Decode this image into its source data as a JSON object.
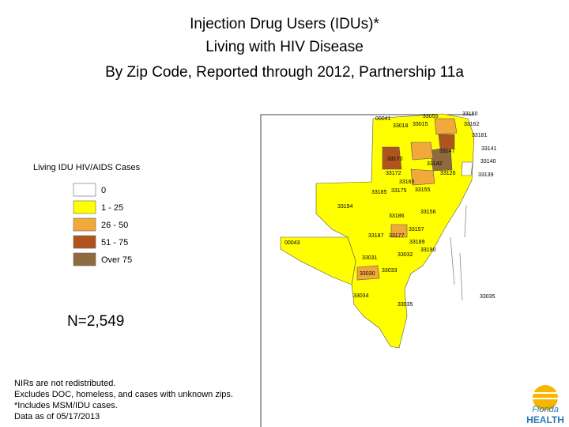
{
  "header": {
    "title_lines": [
      "Injection Drug Users (IDUs)*",
      "Living with HIV Disease",
      "By Zip Code, Reported through 2012, Partnership 11a"
    ]
  },
  "legend": {
    "title": "Living IDU HIV/AIDS Cases",
    "items": [
      {
        "label": "0",
        "color": "#ffffff"
      },
      {
        "label": "1 - 25",
        "color": "#ffff00"
      },
      {
        "label": "26 - 50",
        "color": "#f2a93b"
      },
      {
        "label": "51 - 75",
        "color": "#b0541e"
      },
      {
        "label": "Over 75",
        "color": "#8f6a3e"
      }
    ]
  },
  "total": "N=2,549",
  "footnotes": [
    "NIRs are not redistributed.",
    "Excludes DOC, homeless, and cases with unknown zips.",
    "*Includes MSM/IDU cases.",
    "Data as of 05/17/2013"
  ],
  "map": {
    "zip_labels": [
      "00041",
      "33055",
      "33018",
      "33015",
      "33160",
      "33162",
      "33181",
      "33147",
      "33141",
      "33170",
      "33140",
      "33142",
      "33139",
      "33172",
      "33165",
      "33126",
      "33185",
      "33175",
      "33155",
      "33194",
      "33186",
      "33156",
      "33157",
      "33187",
      "33177",
      "00043",
      "33189",
      "33190",
      "33032",
      "33031",
      "33030",
      "33033",
      "33034",
      "33035",
      "33035"
    ]
  },
  "logo": {
    "line1": "Florida",
    "line2": "HEALTH"
  }
}
